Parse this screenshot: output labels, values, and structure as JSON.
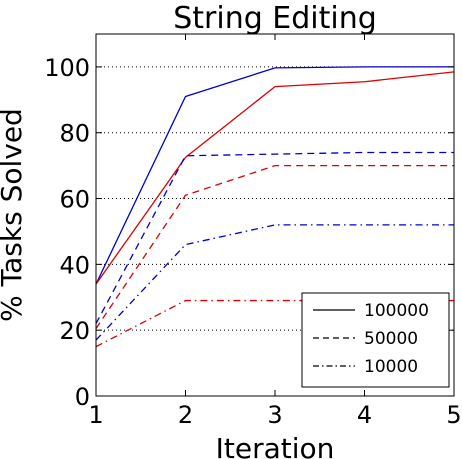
{
  "chart_data": {
    "type": "line",
    "title": "String Editing",
    "xlabel": "Iteration",
    "ylabel": "% Tasks Solved",
    "x": [
      1,
      2,
      3,
      4,
      5
    ],
    "xlim": [
      1,
      5
    ],
    "ylim": [
      0,
      110
    ],
    "xticks": [
      "1",
      "2",
      "3",
      "4",
      "5"
    ],
    "yticks": [
      "0",
      "20",
      "40",
      "60",
      "80",
      "100"
    ],
    "grid": "horizontal-dotted",
    "legend_position": "bottom-right",
    "legend": [
      {
        "label": "100000",
        "style": "solid"
      },
      {
        "label": "50000",
        "style": "dashed"
      },
      {
        "label": "10000",
        "style": "dashdot"
      }
    ],
    "series": [
      {
        "color": "#0000cc",
        "style": "solid",
        "values": [
          34,
          91,
          99.7,
          100,
          100
        ]
      },
      {
        "color": "#dd0000",
        "style": "solid",
        "values": [
          34,
          72.5,
          94,
          95.5,
          98.5
        ]
      },
      {
        "color": "#0000cc",
        "style": "dashed",
        "values": [
          22,
          73,
          73.5,
          74,
          74
        ]
      },
      {
        "color": "#dd0000",
        "style": "dashed",
        "values": [
          20.5,
          61,
          70,
          70,
          70
        ]
      },
      {
        "color": "#0000cc",
        "style": "dashdot",
        "values": [
          17,
          46,
          52,
          52,
          52
        ]
      },
      {
        "color": "#dd0000",
        "style": "dashdot",
        "values": [
          15,
          29,
          29,
          29,
          29
        ]
      }
    ]
  }
}
